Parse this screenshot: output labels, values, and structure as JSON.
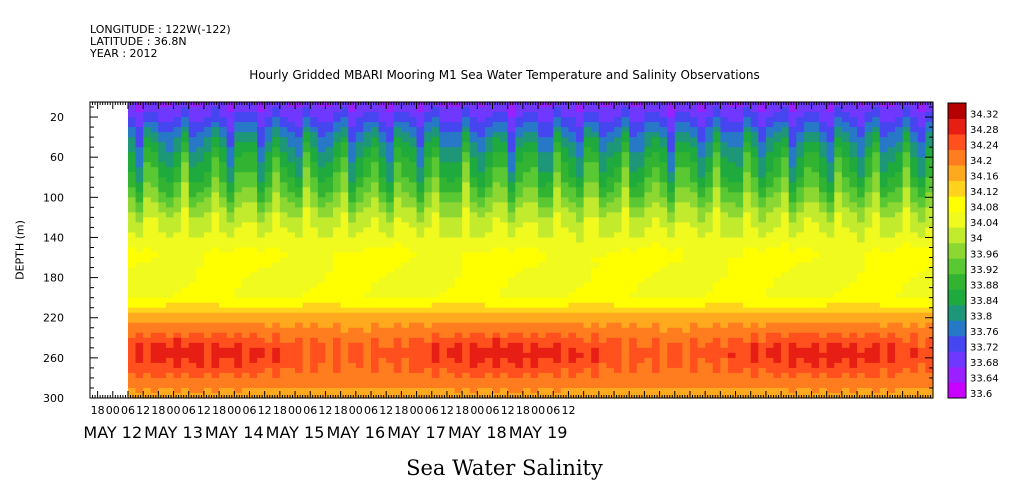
{
  "header": {
    "longitude": "LONGITUDE : 122W(-122)",
    "latitude": "LATITUDE : 36.8N",
    "year": "YEAR : 2012"
  },
  "chart_data": {
    "type": "heatmap",
    "title": "Hourly Gridded MBARI Mooring M1 Sea Water Temperature and Salinity Observations",
    "bottom_title": "Sea Water Salinity",
    "ylabel": "DEPTH (m)",
    "xlabel": "",
    "x_hour_ticks": [
      "18",
      "00",
      "06",
      "12",
      "18",
      "00",
      "06",
      "12",
      "18",
      "00",
      "06",
      "12",
      "18",
      "00",
      "06",
      "12",
      "18",
      "00",
      "06",
      "12",
      "18",
      "00",
      "06",
      "12",
      "18",
      "00",
      "06",
      "12",
      "18",
      "00",
      "06",
      "12"
    ],
    "x_day_labels": [
      "MAY 12",
      "MAY 13",
      "MAY 14",
      "MAY 15",
      "MAY 16",
      "MAY 17",
      "MAY 18",
      "MAY 19"
    ],
    "x_range_hours": [
      -9,
      324
    ],
    "data_start_hour": 6,
    "y_ticks": [
      20,
      60,
      100,
      140,
      180,
      220,
      260,
      300
    ],
    "ylim": [
      5,
      300
    ],
    "y_reversed": true,
    "colorbar": {
      "levels": [
        33.6,
        33.64,
        33.68,
        33.72,
        33.76,
        33.8,
        33.84,
        33.88,
        33.92,
        33.96,
        34,
        34.04,
        34.08,
        34.12,
        34.16,
        34.2,
        34.24,
        34.28,
        34.32
      ],
      "labels": [
        "33.6",
        "33.64",
        "33.68",
        "33.72",
        "33.76",
        "33.8",
        "33.84",
        "33.88",
        "33.92",
        "33.96",
        "34",
        "34.04",
        "34.08",
        "34.12",
        "34.16",
        "34.2",
        "34.24",
        "34.28",
        "34.32"
      ],
      "colors": [
        "#c800ff",
        "#9a20ff",
        "#7038ff",
        "#4646f0",
        "#2878c8",
        "#1e9678",
        "#1eaa3c",
        "#32b432",
        "#5ac832",
        "#8cd732",
        "#c3eb2d",
        "#f0fa1e",
        "#ffff00",
        "#ffd21e",
        "#ffaa1e",
        "#ff7d1e",
        "#ff501e",
        "#e61e14",
        "#b40000"
      ]
    },
    "depth_profile": [
      {
        "depth": 5,
        "value": 33.68
      },
      {
        "depth": 20,
        "value": 33.72
      },
      {
        "depth": 40,
        "value": 33.8
      },
      {
        "depth": 60,
        "value": 33.86
      },
      {
        "depth": 80,
        "value": 33.9
      },
      {
        "depth": 100,
        "value": 33.96
      },
      {
        "depth": 120,
        "value": 34.02
      },
      {
        "depth": 140,
        "value": 34.05
      },
      {
        "depth": 160,
        "value": 34.09
      },
      {
        "depth": 180,
        "value": 34.07
      },
      {
        "depth": 200,
        "value": 34.08
      },
      {
        "depth": 220,
        "value": 34.18
      },
      {
        "depth": 240,
        "value": 34.24
      },
      {
        "depth": 255,
        "value": 34.28
      },
      {
        "depth": 270,
        "value": 34.25
      },
      {
        "depth": 300,
        "value": 34.18
      }
    ]
  }
}
